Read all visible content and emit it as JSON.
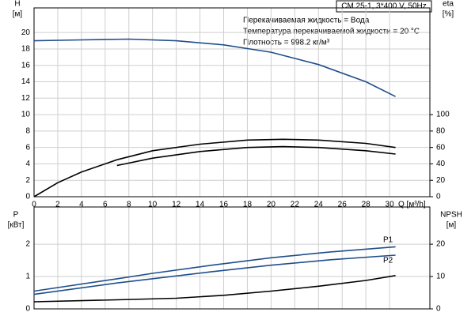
{
  "chart_data": [
    {
      "type": "line",
      "title": "CM 25-1, 3*400 V, 50Hz",
      "annotations": [
        "Перекачиваемая жидкость = Вода",
        "Температура перекачиваемой жидкости = 20 °C",
        "Плотность = 998.2 кг/м³"
      ],
      "y_label": [
        "H",
        "[м]"
      ],
      "y2_label": [
        "eta",
        "[%]"
      ],
      "x_label": "Q [м³/h]",
      "xlim": [
        0,
        33.4
      ],
      "xticks": [
        0,
        2,
        4,
        6,
        8,
        10,
        12,
        14,
        16,
        18,
        20,
        22,
        24,
        26,
        28,
        30
      ],
      "ylim": [
        0,
        23
      ],
      "yticks": [
        0,
        2,
        4,
        6,
        8,
        10,
        12,
        14,
        16,
        18,
        20
      ],
      "y2lim": [
        0,
        230
      ],
      "y2ticks": [
        0,
        20,
        40,
        60,
        80,
        100
      ],
      "grid": true,
      "series": [
        {
          "color": "#1f4e8c",
          "x": [
            0,
            4,
            8,
            12,
            16,
            20,
            24,
            28,
            30.5
          ],
          "values": [
            19.0,
            19.1,
            19.2,
            19.0,
            18.5,
            17.6,
            16.1,
            14.0,
            12.2
          ]
        },
        {
          "color": "#000000",
          "axis": "y2",
          "x": [
            0,
            2,
            4,
            7,
            10,
            14,
            18,
            21,
            24,
            28,
            30.5
          ],
          "values": [
            0,
            17,
            30,
            45,
            56,
            64,
            69,
            70,
            69,
            65,
            60
          ]
        },
        {
          "color": "#000000",
          "axis": "y2",
          "x": [
            7,
            10,
            14,
            18,
            21,
            24,
            28,
            30.5
          ],
          "values": [
            38,
            47,
            55,
            60,
            61,
            60,
            56,
            52
          ]
        }
      ]
    },
    {
      "type": "line",
      "y_label": [
        "P",
        "[кВт]"
      ],
      "y2_label": [
        "NPSH",
        "[м]"
      ],
      "xlim": [
        0,
        33.4
      ],
      "ylim": [
        0,
        3.15
      ],
      "yticks": [
        0,
        1,
        2
      ],
      "y2lim": [
        0,
        31.5
      ],
      "y2ticks": [
        0,
        10,
        20
      ],
      "grid": true,
      "series": [
        {
          "name": "P1",
          "color": "#1f4e8c",
          "x": [
            0,
            7,
            10,
            15,
            20,
            25,
            30.5
          ],
          "values": [
            0.55,
            0.93,
            1.1,
            1.35,
            1.58,
            1.76,
            1.92
          ]
        },
        {
          "name": "P2",
          "color": "#1f4e8c",
          "x": [
            0,
            7,
            15,
            20,
            25,
            30.5
          ],
          "values": [
            0.45,
            0.8,
            1.15,
            1.35,
            1.52,
            1.66
          ]
        },
        {
          "color": "#000000",
          "axis": "y2",
          "x": [
            0,
            7,
            12,
            16,
            20,
            24,
            28,
            30.5
          ],
          "values": [
            2.2,
            2.8,
            3.3,
            4.2,
            5.5,
            7.0,
            8.8,
            10.3
          ]
        }
      ]
    }
  ]
}
